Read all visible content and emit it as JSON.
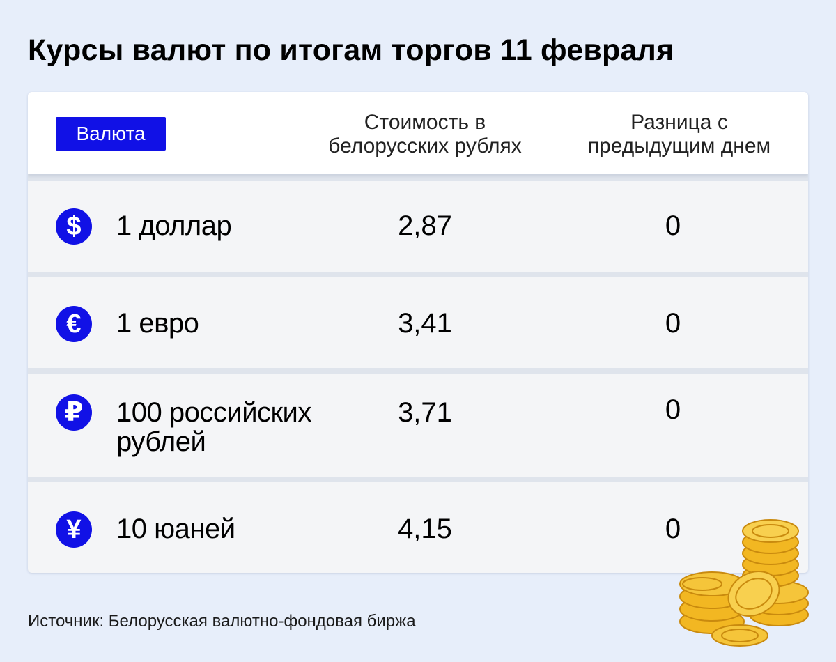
{
  "title": "Курсы валют по итогам торгов 11 февраля",
  "table": {
    "headers": {
      "currency": "Валюта",
      "price": "Стоимость в\nбелорусских рублях",
      "diff": "Разница с\nпредыдущим днем"
    },
    "rows": [
      {
        "icon": "dollar-icon",
        "symbol": "$",
        "name": "1 доллар",
        "value": "2,87",
        "change": "0"
      },
      {
        "icon": "euro-icon",
        "symbol": "€",
        "name": "1 евро",
        "value": "3,41",
        "change": "0"
      },
      {
        "icon": "ruble-icon",
        "symbol": "₽",
        "name": "100 российских\nрублей",
        "value": "3,71",
        "change": "0"
      },
      {
        "icon": "yuan-icon",
        "symbol": "¥",
        "name": "10 юаней",
        "value": "4,15",
        "change": "0"
      }
    ]
  },
  "source": "Источник: Белорусская валютно-фондовая биржа",
  "colors": {
    "accent": "#1111e6",
    "background": "#e7eefa",
    "row": "#f4f5f7",
    "coin": "#f2b722"
  }
}
